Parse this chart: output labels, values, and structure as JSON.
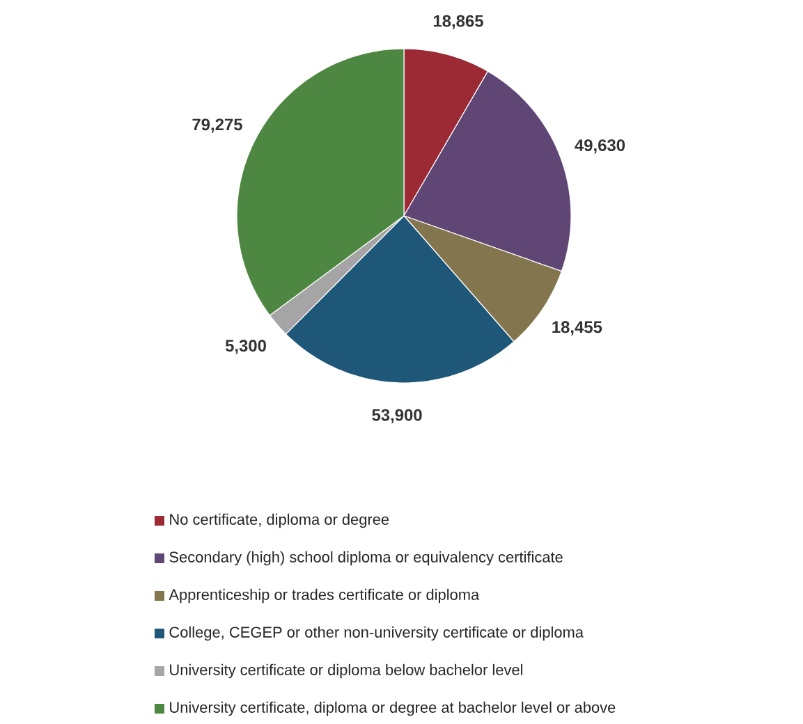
{
  "chart_data": {
    "type": "pie",
    "categories": [
      "No certificate, diploma or degree",
      "Secondary (high) school diploma or equivalency certificate",
      "Apprenticeship or trades certificate or diploma",
      "College, CEGEP or other non-university certificate or diploma",
      "University certificate or diploma below bachelor level",
      "University certificate, diploma or degree at bachelor level or above"
    ],
    "values": [
      18865,
      49630,
      18455,
      53900,
      5300,
      79275
    ],
    "colors": [
      "#9b2a35",
      "#5f4675",
      "#83754e",
      "#1f5779",
      "#a5a5a5",
      "#4e8741"
    ],
    "value_labels": [
      "18,865",
      "49,630",
      "18,455",
      "53,900",
      "5,300",
      "79,275"
    ],
    "legend": "bottom"
  }
}
